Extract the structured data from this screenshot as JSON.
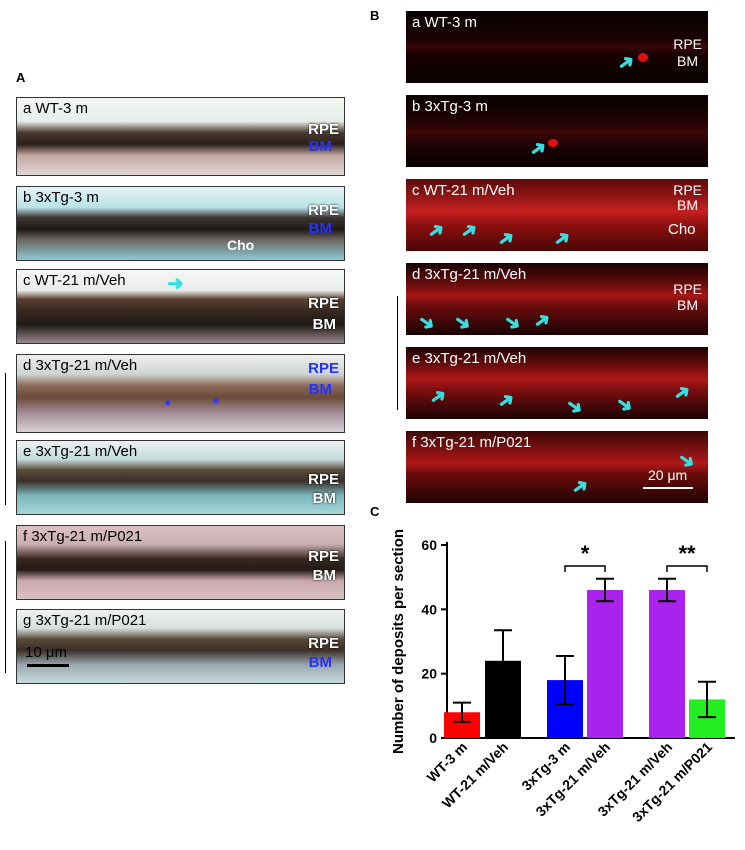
{
  "panel_a": {
    "label": "A",
    "panels": [
      {
        "sub": "a WT-3 m",
        "rpe": "RPE",
        "bm": "BM"
      },
      {
        "sub": "b 3xTg-3 m",
        "rpe": "RPE",
        "bm": "BM",
        "cho": "Cho"
      },
      {
        "sub": "c WT-21 m/Veh",
        "rpe": "RPE",
        "bm": "BM"
      },
      {
        "sub": "d 3xTg-21 m/Veh",
        "rpe": "RPE",
        "bm": "BM"
      },
      {
        "sub": "e 3xTg-21 m/Veh",
        "rpe": "RPE",
        "bm": "BM"
      },
      {
        "sub": "f 3xTg-21 m/P021",
        "rpe": "RPE",
        "bm": "BM"
      },
      {
        "sub": "g 3xTg-21 m/P021",
        "rpe": "RPE",
        "bm": "BM"
      }
    ],
    "scale_bar": "10 μm",
    "star": "*"
  },
  "panel_b": {
    "label": "B",
    "panels": [
      {
        "sub": "a WT-3 m",
        "rpe": "RPE",
        "bm": "BM"
      },
      {
        "sub": "b 3xTg-3 m"
      },
      {
        "sub": "c WT-21 m/Veh",
        "rpe": "RPE",
        "bm": "BM",
        "cho": "Cho"
      },
      {
        "sub": "d 3xTg-21 m/Veh",
        "rpe": "RPE",
        "bm": "BM"
      },
      {
        "sub": "e 3xTg-21 m/Veh"
      },
      {
        "sub": "f 3xTg-21 m/P021"
      }
    ],
    "scale_bar": "20 μm",
    "arrow": "➜"
  },
  "panel_c_label": "C",
  "chart_data": {
    "type": "bar",
    "categories": [
      "WT-3 m",
      "WT-21 m/Veh",
      "3xTg-3 m",
      "3xTg-21 m/Veh",
      "3xTg-21 m/Veh",
      "3xTg-21 m/P021"
    ],
    "values": [
      8,
      24,
      18,
      46,
      46,
      12
    ],
    "errors": [
      3,
      9.5,
      7.5,
      3.5,
      3.5,
      5.5
    ],
    "colors": [
      "#ff0000",
      "#000000",
      "#0000ff",
      "#aa22ee",
      "#aa22ee",
      "#22ee22"
    ],
    "ylabel": "Number of deposits per section",
    "xlabel": "",
    "ylim": [
      0,
      60
    ],
    "yticks": [
      0,
      20,
      40,
      60
    ],
    "significance": [
      {
        "from": 2,
        "to": 3,
        "label": "*"
      },
      {
        "from": 4,
        "to": 5,
        "label": "**"
      }
    ]
  }
}
